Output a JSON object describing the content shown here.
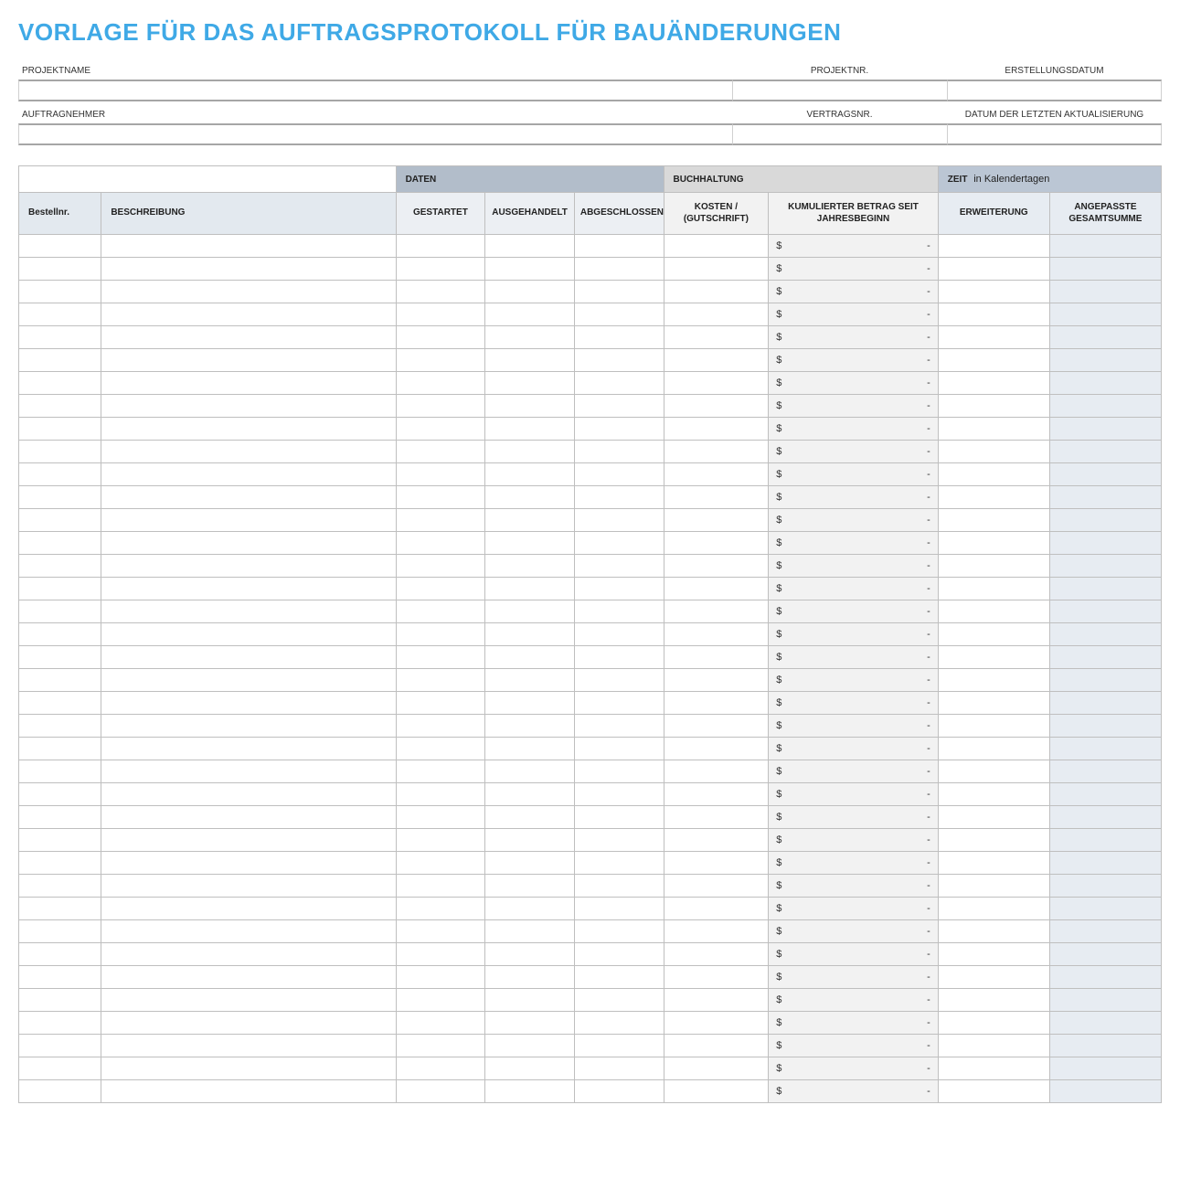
{
  "title": "VORLAGE FÜR DAS AUFTRAGSPROTOKOLL FÜR BAUÄNDERUNGEN",
  "info": {
    "projektname_label": "PROJEKTNAME",
    "projektnr_label": "PROJEKTNR.",
    "erstellungsdatum_label": "ERSTELLUNGSDATUM",
    "auftragnehmer_label": "AUFTRAGNEHMER",
    "vertragsnr_label": "VERTRAGSNR.",
    "letzte_aktual_label": "DATUM DER LETZTEN AKTUALISIERUNG",
    "projektname": "",
    "projektnr": "",
    "erstellungsdatum": "",
    "auftragnehmer": "",
    "vertragsnr": "",
    "letzte_aktual": ""
  },
  "groups": {
    "daten": "DATEN",
    "buchhaltung": "BUCHHALTUNG",
    "zeit_main": "ZEIT",
    "zeit_sub": "in Kalendertagen"
  },
  "columns": {
    "bestellnr": "Bestellnr.",
    "beschreibung": "BESCHREIBUNG",
    "gestartet": "GESTARTET",
    "ausgehandelt": "AUSGEHANDELT",
    "abgeschlossen": "ABGESCHLOSSEN",
    "kosten": "KOSTEN / (GUTSCHRIFT)",
    "kumuliert": "KUMULIERTER BETRAG SEIT JAHRESBEGINN",
    "erweiterung": "ERWEITERUNG",
    "angepasste": "ANGEPASSTE GESAMTSUMME"
  },
  "money": {
    "symbol": "$",
    "empty": "-"
  },
  "row_count": 38,
  "colors": {
    "title": "#3fa9e6",
    "group_daten": "#b2bdca",
    "group_buch": "#d9d9d9",
    "group_zeit": "#bbc6d4",
    "sub_bestell": "#e3e9ef",
    "sub_daten": "#eceff3",
    "sub_buch": "#f2f2f2",
    "sub_zeit": "#e7ecf2",
    "border": "#bfbfbf",
    "info_border": "#a6a6a6"
  }
}
